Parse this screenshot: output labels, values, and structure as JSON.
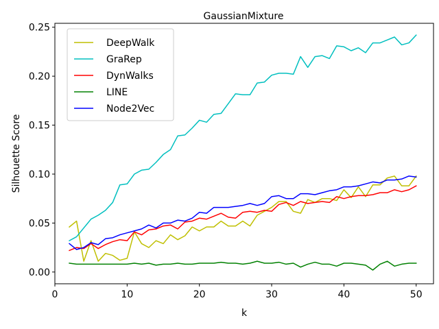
{
  "chart_data": {
    "type": "line",
    "title": "GaussianMixture",
    "xlabel": "k",
    "ylabel": "Silhouette Score",
    "xlim": [
      0,
      52.4
    ],
    "ylim": [
      -0.012,
      0.254
    ],
    "xticks": [
      0,
      10,
      20,
      30,
      40,
      50
    ],
    "xtick_labels": [
      "0",
      "10",
      "20",
      "30",
      "40",
      "50"
    ],
    "yticks": [
      0.0,
      0.05,
      0.1,
      0.15,
      0.2,
      0.25
    ],
    "ytick_labels": [
      "0.00",
      "0.05",
      "0.10",
      "0.15",
      "0.20",
      "0.25"
    ],
    "grid": false,
    "legend_position": "top-left",
    "x": [
      2,
      3,
      4,
      5,
      6,
      7,
      8,
      9,
      10,
      11,
      12,
      13,
      14,
      15,
      16,
      17,
      18,
      19,
      20,
      21,
      22,
      23,
      24,
      25,
      26,
      27,
      28,
      29,
      30,
      31,
      32,
      33,
      34,
      35,
      36,
      37,
      38,
      39,
      40,
      41,
      42,
      43,
      44,
      45,
      46,
      47,
      48,
      49,
      50
    ],
    "series": [
      {
        "name": "DeepWalk",
        "color": "#bfbf00",
        "values": [
          0.046,
          0.052,
          0.011,
          0.032,
          0.011,
          0.019,
          0.017,
          0.012,
          0.014,
          0.041,
          0.029,
          0.025,
          0.032,
          0.029,
          0.038,
          0.033,
          0.037,
          0.046,
          0.042,
          0.046,
          0.046,
          0.052,
          0.047,
          0.047,
          0.052,
          0.047,
          0.058,
          0.062,
          0.066,
          0.072,
          0.072,
          0.062,
          0.06,
          0.074,
          0.071,
          0.075,
          0.075,
          0.073,
          0.084,
          0.076,
          0.087,
          0.077,
          0.089,
          0.089,
          0.096,
          0.098,
          0.088,
          0.088,
          0.098
        ]
      },
      {
        "name": "GraRep",
        "color": "#00bfbf",
        "values": [
          0.032,
          0.036,
          0.045,
          0.054,
          0.058,
          0.063,
          0.071,
          0.089,
          0.09,
          0.1,
          0.104,
          0.105,
          0.112,
          0.12,
          0.125,
          0.139,
          0.14,
          0.147,
          0.155,
          0.153,
          0.161,
          0.162,
          0.172,
          0.182,
          0.181,
          0.181,
          0.193,
          0.194,
          0.201,
          0.203,
          0.203,
          0.202,
          0.22,
          0.209,
          0.22,
          0.221,
          0.218,
          0.231,
          0.23,
          0.226,
          0.229,
          0.224,
          0.234,
          0.234,
          0.237,
          0.24,
          0.232,
          0.234,
          0.242
        ]
      },
      {
        "name": "DynWalks",
        "color": "#ff0000",
        "values": [
          0.022,
          0.025,
          0.024,
          0.029,
          0.024,
          0.028,
          0.031,
          0.033,
          0.032,
          0.041,
          0.038,
          0.043,
          0.044,
          0.047,
          0.048,
          0.044,
          0.051,
          0.052,
          0.055,
          0.054,
          0.057,
          0.06,
          0.056,
          0.055,
          0.061,
          0.062,
          0.061,
          0.063,
          0.062,
          0.069,
          0.071,
          0.068,
          0.072,
          0.07,
          0.071,
          0.072,
          0.071,
          0.077,
          0.075,
          0.077,
          0.078,
          0.078,
          0.079,
          0.081,
          0.081,
          0.084,
          0.082,
          0.084,
          0.088
        ]
      },
      {
        "name": "LINE",
        "color": "#008000",
        "values": [
          0.009,
          0.008,
          0.008,
          0.008,
          0.008,
          0.008,
          0.008,
          0.008,
          0.008,
          0.009,
          0.008,
          0.009,
          0.007,
          0.008,
          0.008,
          0.009,
          0.008,
          0.008,
          0.009,
          0.009,
          0.009,
          0.01,
          0.009,
          0.009,
          0.008,
          0.009,
          0.011,
          0.009,
          0.009,
          0.01,
          0.008,
          0.009,
          0.005,
          0.008,
          0.01,
          0.008,
          0.008,
          0.006,
          0.009,
          0.009,
          0.008,
          0.007,
          0.002,
          0.008,
          0.011,
          0.006,
          0.008,
          0.009,
          0.009
        ]
      },
      {
        "name": "Node2Vec",
        "color": "#0000ff",
        "values": [
          0.029,
          0.023,
          0.025,
          0.03,
          0.028,
          0.034,
          0.035,
          0.038,
          0.04,
          0.042,
          0.044,
          0.048,
          0.045,
          0.05,
          0.05,
          0.053,
          0.052,
          0.055,
          0.061,
          0.06,
          0.066,
          0.066,
          0.066,
          0.067,
          0.068,
          0.07,
          0.068,
          0.07,
          0.077,
          0.078,
          0.075,
          0.075,
          0.08,
          0.08,
          0.079,
          0.081,
          0.083,
          0.084,
          0.087,
          0.087,
          0.088,
          0.09,
          0.092,
          0.091,
          0.094,
          0.094,
          0.095,
          0.098,
          0.097
        ]
      }
    ]
  }
}
